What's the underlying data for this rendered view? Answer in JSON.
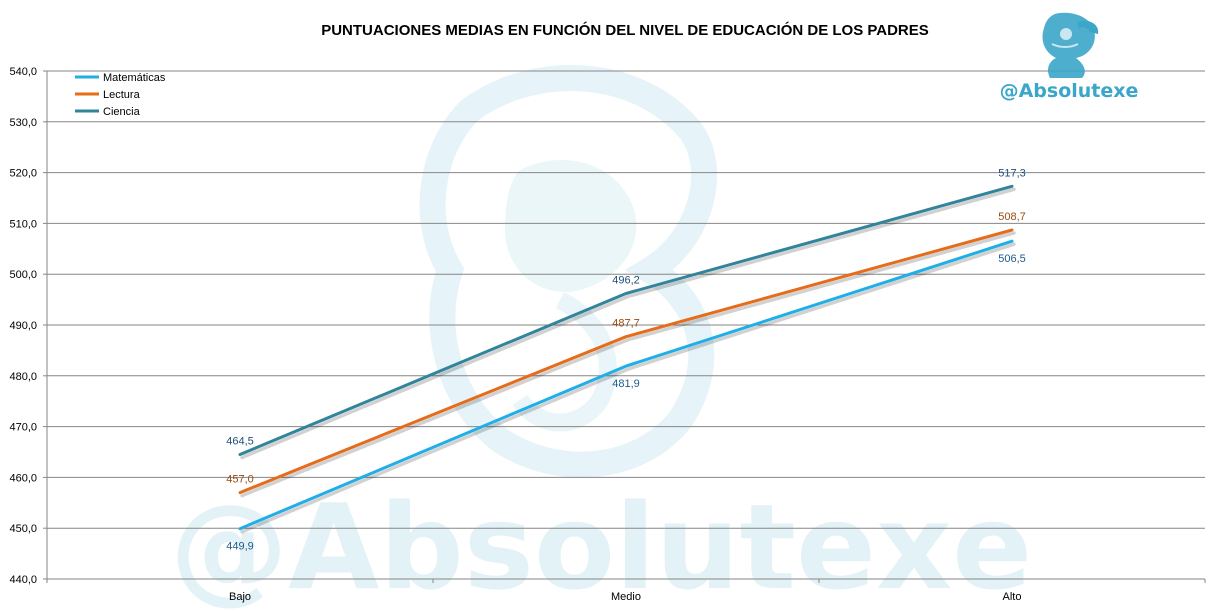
{
  "brand": {
    "handle": "@Absolutexe",
    "color": "#3AA6C8",
    "logo_icon": "griffin-logo-icon"
  },
  "watermark": {
    "text": "@Absolutexe",
    "color": "#E3F2F7",
    "icon": "griffin-watermark-icon"
  },
  "colors": {
    "grid": "#868686",
    "axis": "#868686",
    "background": "#ffffff"
  },
  "chart_data": {
    "type": "line",
    "title": "PUNTUACIONES  MEDIAS EN FUNCIÓN DEL NIVEL DE EDUCACIÓN DE LOS PADRES",
    "xlabel": "",
    "ylabel": "",
    "categories": [
      "Bajo",
      "Medio",
      "Alto"
    ],
    "ylim": [
      440,
      540
    ],
    "ytick_step": 10,
    "y_tick_labels": [
      "440,0",
      "450,0",
      "460,0",
      "470,0",
      "480,0",
      "490,0",
      "500,0",
      "510,0",
      "520,0",
      "530,0",
      "540,0"
    ],
    "grid": true,
    "legend_position": "top-left",
    "series": [
      {
        "name": "Matemáticas",
        "values": [
          449.9,
          481.9,
          506.5
        ],
        "labels": [
          "449,9",
          "481,9",
          "506,5"
        ],
        "color": "#1FAEE6",
        "label_color": "#1F5A8C",
        "label_placement": "below"
      },
      {
        "name": "Lectura",
        "values": [
          457.0,
          487.7,
          508.7
        ],
        "labels": [
          "457,0",
          "487,7",
          "508,7"
        ],
        "color": "#E46C1A",
        "label_color": "#9A4A12",
        "label_placement": "above"
      },
      {
        "name": "Ciencia",
        "values": [
          464.5,
          496.2,
          517.3
        ],
        "labels": [
          "464,5",
          "496,2",
          "517,3"
        ],
        "color": "#31849B",
        "label_color": "#1F4E79",
        "label_placement": "above"
      }
    ]
  }
}
